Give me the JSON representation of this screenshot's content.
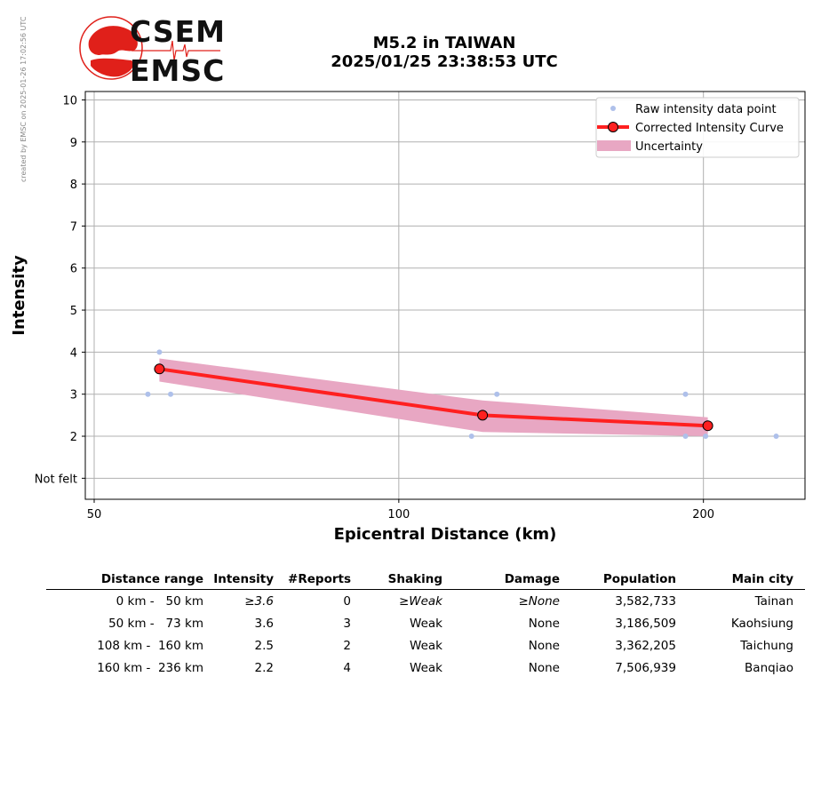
{
  "header": {
    "watermark": "created by EMSC on 2025-01-26 17:02:56 UTC",
    "logo_top": "CSEM",
    "logo_bottom": "EMSC",
    "title_line1": "M5.2 in TAIWAN",
    "title_line2": "2025/01/25 23:38:53 UTC"
  },
  "chart_data": {
    "type": "line",
    "xlabel": "Epicentral Distance (km)",
    "ylabel": "Intensity",
    "x_scale": "log",
    "x_ticks": [
      50,
      100,
      200
    ],
    "y_ticks": [
      1,
      2,
      3,
      4,
      5,
      6,
      7,
      8,
      9,
      10
    ],
    "y_tick_labels": [
      "Not felt",
      "2",
      "3",
      "4",
      "5",
      "6",
      "7",
      "8",
      "9",
      "10"
    ],
    "xlim": [
      49,
      252
    ],
    "ylim": [
      0.5,
      10.2
    ],
    "grid": true,
    "legend_position": "top-right",
    "colors": {
      "raw": "#aec0ea",
      "curve": "#ff2020",
      "marker_edge": "#000000",
      "uncertainty": "#e8a7c3",
      "grid": "#b0b0b0"
    },
    "series": [
      {
        "name": "Raw intensity data point",
        "kind": "scatter",
        "points": [
          [
            56.5,
            3
          ],
          [
            58,
            4
          ],
          [
            59.5,
            3
          ],
          [
            118,
            2
          ],
          [
            125,
            3
          ],
          [
            192,
            3
          ],
          [
            192,
            2
          ],
          [
            201,
            2
          ],
          [
            236,
            2
          ]
        ]
      },
      {
        "name": "Corrected Intensity Curve",
        "kind": "line",
        "points": [
          [
            58,
            3.6
          ],
          [
            121,
            2.5
          ],
          [
            202,
            2.25
          ]
        ]
      },
      {
        "name": "Uncertainty",
        "kind": "band",
        "x": [
          58,
          121,
          202
        ],
        "upper": [
          3.85,
          2.85,
          2.45
        ],
        "lower": [
          3.3,
          2.1,
          2.0
        ]
      }
    ]
  },
  "table": {
    "headers": [
      "Distance range",
      "Intensity",
      "#Reports",
      "Shaking",
      "Damage",
      "Population",
      "Main city"
    ],
    "rows": [
      [
        "0 km -   50 km",
        "≥3.6",
        "0",
        "≥Weak",
        "≥None",
        "3,582,733",
        "Tainan"
      ],
      [
        "50 km -   73 km",
        "3.6",
        "3",
        "Weak",
        "None",
        "3,186,509",
        "Kaohsiung"
      ],
      [
        "108 km -  160 km",
        "2.5",
        "2",
        "Weak",
        "None",
        "3,362,205",
        "Taichung"
      ],
      [
        "160 km -  236 km",
        "2.2",
        "4",
        "Weak",
        "None",
        "7,506,939",
        "Banqiao"
      ]
    ]
  }
}
